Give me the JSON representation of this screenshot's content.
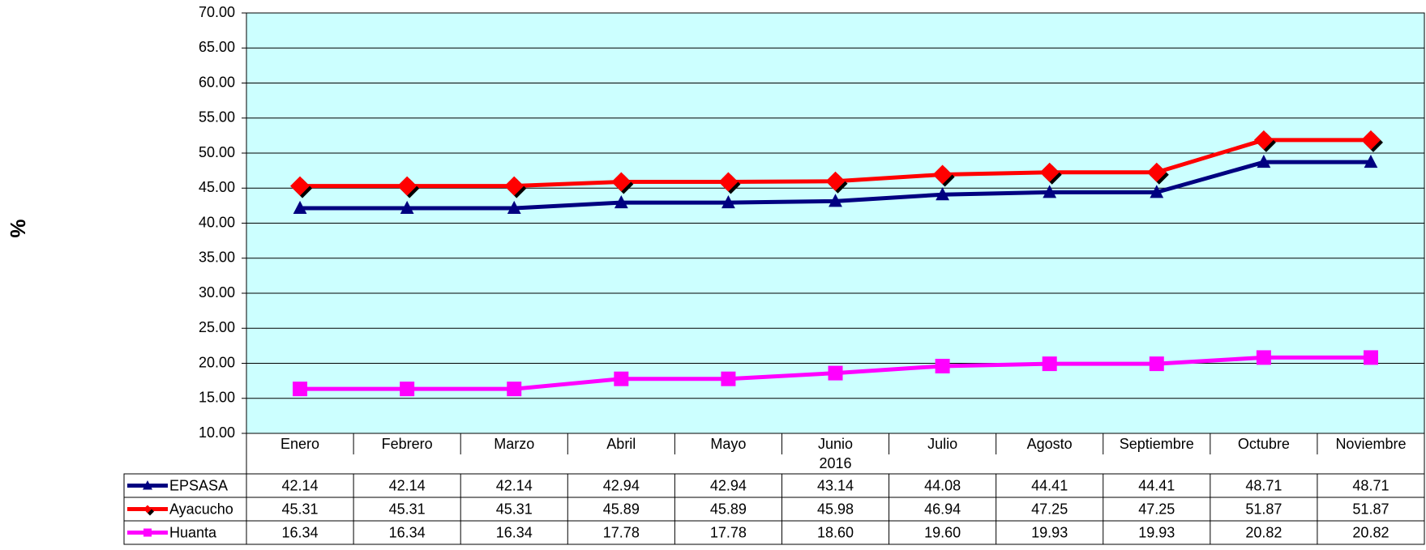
{
  "chart_data": {
    "type": "line",
    "y_label": "%",
    "categories": [
      "Enero",
      "Febrero",
      "Marzo",
      "Abril",
      "Mayo",
      "Junio",
      "Julio",
      "Agosto",
      "Septiembre",
      "Octubre",
      "Noviembre"
    ],
    "x_group": "2016",
    "series": [
      {
        "name": "EPSASA",
        "color": "#000080",
        "marker": "triangle",
        "values": [
          42.14,
          42.14,
          42.14,
          42.94,
          42.94,
          43.14,
          44.08,
          44.41,
          44.41,
          48.71,
          48.71
        ],
        "value_labels": [
          "42.14",
          "42.14",
          "42.14",
          "42.94",
          "42.94",
          "43.14",
          "44.08",
          "44.41",
          "44.41",
          "48.71",
          "48.71"
        ]
      },
      {
        "name": "Ayacucho",
        "color": "#ff0000",
        "marker": "diamond",
        "values": [
          45.31,
          45.31,
          45.31,
          45.89,
          45.89,
          45.98,
          46.94,
          47.25,
          47.25,
          51.87,
          51.87
        ],
        "value_labels": [
          "45.31",
          "45.31",
          "45.31",
          "45.89",
          "45.89",
          "45.98",
          "46.94",
          "47.25",
          "47.25",
          "51.87",
          "51.87"
        ]
      },
      {
        "name": "Huanta",
        "color": "#ff00ff",
        "marker": "square",
        "values": [
          16.34,
          16.34,
          16.34,
          17.78,
          17.78,
          18.6,
          19.6,
          19.93,
          19.93,
          20.82,
          20.82
        ],
        "value_labels": [
          "16.34",
          "16.34",
          "16.34",
          "17.78",
          "17.78",
          "18.60",
          "19.60",
          "19.93",
          "19.93",
          "20.82",
          "20.82"
        ]
      }
    ],
    "ylim": [
      10,
      70
    ],
    "yticks": [
      {
        "value": 10,
        "label": "10.00"
      },
      {
        "value": 15,
        "label": "15.00"
      },
      {
        "value": 20,
        "label": "20.00"
      },
      {
        "value": 25,
        "label": "25.00"
      },
      {
        "value": 30,
        "label": "30.00"
      },
      {
        "value": 35,
        "label": "35.00"
      },
      {
        "value": 40,
        "label": "40.00"
      },
      {
        "value": 45,
        "label": "45.00"
      },
      {
        "value": 50,
        "label": "50.00"
      },
      {
        "value": 55,
        "label": "55.00"
      },
      {
        "value": 60,
        "label": "60.00"
      },
      {
        "value": 65,
        "label": "65.00"
      },
      {
        "value": 70,
        "label": "70.00"
      }
    ],
    "grid": true,
    "plot_background": "#ccffff"
  }
}
